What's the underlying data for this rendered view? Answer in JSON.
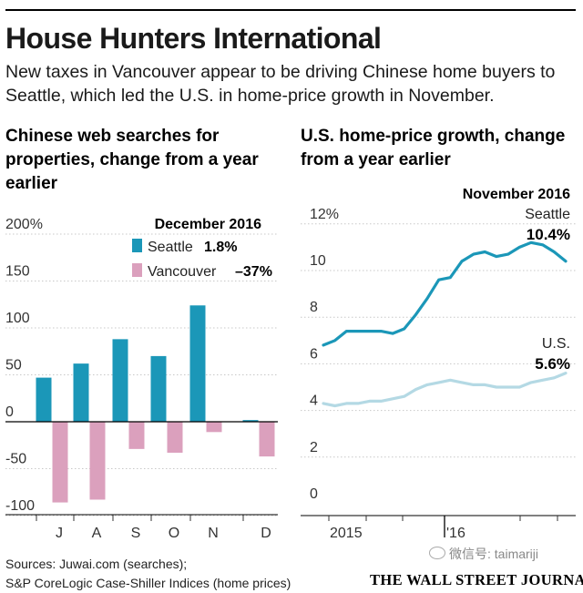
{
  "header": {
    "title": "House Hunters International",
    "subtitle": "New taxes in Vancouver appear to be driving Chinese home buyers to Seattle, which led the U.S. in home-price growth in November."
  },
  "footer": {
    "source_line1": "Sources: Juwai.com (searches);",
    "source_line2": "S&P CoreLogic Case-Shiller Indices (home prices)",
    "publisher": "THE WALL STREET JOURNAL.",
    "watermark": "微信号: taimariji"
  },
  "colors": {
    "seattle": "#1b97b8",
    "vancouver": "#dba0bd",
    "us": "#b4d9e4"
  },
  "chart_data": [
    {
      "type": "bar",
      "title": "Chinese web searches for properties, change from a year earlier",
      "categories": [
        "J",
        "A",
        "S",
        "O",
        "N",
        "D"
      ],
      "series": [
        {
          "name": "Seattle",
          "values": [
            47,
            62,
            88,
            70,
            124,
            1.8
          ]
        },
        {
          "name": "Vancouver",
          "values": [
            -86,
            -83,
            -29,
            -33,
            -11,
            -37
          ]
        }
      ],
      "ylim": [
        -100,
        200
      ],
      "yticks": [
        200,
        150,
        100,
        50,
        0,
        -50,
        -100
      ],
      "ytick_labels": [
        "200%",
        "150",
        "100",
        "50",
        "0",
        "-50",
        "-100"
      ],
      "legend": {
        "heading": "December 2016",
        "entries": [
          {
            "label": "Seattle",
            "value": "1.8%"
          },
          {
            "label": "Vancouver",
            "value": "–37%"
          }
        ]
      }
    },
    {
      "type": "line",
      "title": "U.S. home-price growth, change from a year earlier",
      "annotation": "November 2016",
      "x_ticks": [
        "2015",
        "'16"
      ],
      "ylim": [
        0,
        12
      ],
      "yticks": [
        12,
        10,
        8,
        6,
        4,
        2,
        0
      ],
      "ytick_labels": [
        "12%",
        "10",
        "8",
        "6",
        "4",
        "2",
        "0"
      ],
      "series": [
        {
          "name": "Seattle",
          "label_value": "10.4%",
          "values": [
            6.8,
            7.0,
            7.4,
            7.4,
            7.4,
            7.4,
            7.3,
            7.5,
            8.1,
            8.8,
            9.6,
            9.7,
            10.4,
            10.7,
            10.8,
            10.6,
            10.7,
            11.0,
            11.2,
            11.1,
            10.8,
            10.4
          ]
        },
        {
          "name": "U.S.",
          "label_value": "5.6%",
          "values": [
            4.3,
            4.2,
            4.3,
            4.3,
            4.4,
            4.4,
            4.5,
            4.6,
            4.9,
            5.1,
            5.2,
            5.3,
            5.2,
            5.1,
            5.1,
            5.0,
            5.0,
            5.0,
            5.2,
            5.3,
            5.4,
            5.6
          ]
        }
      ]
    }
  ]
}
